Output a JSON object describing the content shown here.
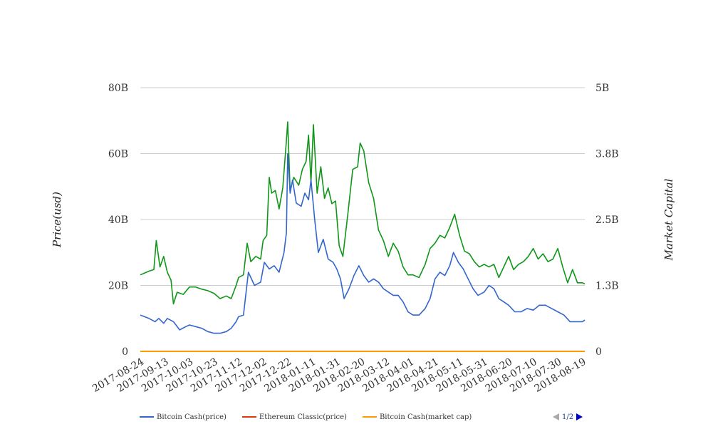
{
  "chart_data": {
    "type": "line",
    "ylabel_left": "Price(usd)",
    "ylabel_right": "Market Capital",
    "y_left_ticks": [
      "0",
      "20B",
      "40B",
      "60B",
      "80B"
    ],
    "y_left_range": [
      0,
      80
    ],
    "y_right_ticks": [
      "0",
      "1.3B",
      "2.5B",
      "3.8B",
      "5B"
    ],
    "y_right_range": [
      0,
      5
    ],
    "x_ticks": [
      "2017-08-24",
      "2017-09-13",
      "2017-10-03",
      "2017-10-23",
      "2017-11-12",
      "2017-12-02",
      "2017-12-22",
      "2018-01-11",
      "2018-01-31",
      "2018-02-20",
      "2018-03-12",
      "2018-04-01",
      "2018-04-21",
      "2018-05-11",
      "2018-05-31",
      "2018-06-20",
      "2018-07-10",
      "2018-07-30",
      "2018-08-19"
    ],
    "x_range": [
      "2017-08-24",
      "2018-08-21"
    ],
    "series": [
      {
        "name": "Bitcoin Cash(price)",
        "color": "#3366cc",
        "axis": "left",
        "points": [
          [
            "2017-08-24",
            11
          ],
          [
            "2017-08-31",
            10
          ],
          [
            "2017-09-05",
            9
          ],
          [
            "2017-09-08",
            10
          ],
          [
            "2017-09-12",
            8.5
          ],
          [
            "2017-09-15",
            10
          ],
          [
            "2017-09-20",
            9
          ],
          [
            "2017-09-25",
            6.5
          ],
          [
            "2017-09-30",
            7.5
          ],
          [
            "2017-10-03",
            8
          ],
          [
            "2017-10-08",
            7.5
          ],
          [
            "2017-10-13",
            7
          ],
          [
            "2017-10-18",
            6
          ],
          [
            "2017-10-23",
            5.5
          ],
          [
            "2017-10-28",
            5.5
          ],
          [
            "2017-11-02",
            6
          ],
          [
            "2017-11-06",
            7
          ],
          [
            "2017-11-10",
            9
          ],
          [
            "2017-11-12",
            10.5
          ],
          [
            "2017-11-16",
            11
          ],
          [
            "2017-11-20",
            24
          ],
          [
            "2017-11-25",
            20
          ],
          [
            "2017-11-30",
            21
          ],
          [
            "2017-12-03",
            27
          ],
          [
            "2017-12-07",
            25
          ],
          [
            "2017-12-11",
            26
          ],
          [
            "2017-12-15",
            24
          ],
          [
            "2017-12-19",
            30
          ],
          [
            "2017-12-21",
            36
          ],
          [
            "2017-12-22",
            60
          ],
          [
            "2017-12-24",
            48
          ],
          [
            "2017-12-26",
            52
          ],
          [
            "2017-12-29",
            45
          ],
          [
            "2018-01-02",
            44
          ],
          [
            "2018-01-05",
            48
          ],
          [
            "2018-01-08",
            46
          ],
          [
            "2018-01-10",
            52
          ],
          [
            "2018-01-13",
            40
          ],
          [
            "2018-01-16",
            30
          ],
          [
            "2018-01-20",
            34
          ],
          [
            "2018-01-24",
            28
          ],
          [
            "2018-01-28",
            27
          ],
          [
            "2018-01-31",
            25
          ],
          [
            "2018-02-03",
            22
          ],
          [
            "2018-02-06",
            16
          ],
          [
            "2018-02-10",
            19
          ],
          [
            "2018-02-14",
            23
          ],
          [
            "2018-02-18",
            26
          ],
          [
            "2018-02-22",
            23
          ],
          [
            "2018-02-26",
            21
          ],
          [
            "2018-03-02",
            22
          ],
          [
            "2018-03-06",
            21
          ],
          [
            "2018-03-10",
            19
          ],
          [
            "2018-03-14",
            18
          ],
          [
            "2018-03-18",
            17
          ],
          [
            "2018-03-22",
            17
          ],
          [
            "2018-03-26",
            15
          ],
          [
            "2018-03-30",
            12
          ],
          [
            "2018-04-03",
            11
          ],
          [
            "2018-04-08",
            11
          ],
          [
            "2018-04-13",
            13
          ],
          [
            "2018-04-17",
            16
          ],
          [
            "2018-04-21",
            22
          ],
          [
            "2018-04-25",
            24
          ],
          [
            "2018-04-29",
            23
          ],
          [
            "2018-05-03",
            26
          ],
          [
            "2018-05-06",
            30
          ],
          [
            "2018-05-10",
            27
          ],
          [
            "2018-05-14",
            25
          ],
          [
            "2018-05-18",
            22
          ],
          [
            "2018-05-22",
            19
          ],
          [
            "2018-05-26",
            17
          ],
          [
            "2018-05-31",
            18
          ],
          [
            "2018-06-04",
            20
          ],
          [
            "2018-06-08",
            19
          ],
          [
            "2018-06-12",
            16
          ],
          [
            "2018-06-16",
            15
          ],
          [
            "2018-06-20",
            14
          ],
          [
            "2018-06-25",
            12
          ],
          [
            "2018-06-30",
            12
          ],
          [
            "2018-07-05",
            13
          ],
          [
            "2018-07-10",
            12.5
          ],
          [
            "2018-07-15",
            14
          ],
          [
            "2018-07-20",
            14
          ],
          [
            "2018-07-25",
            13
          ],
          [
            "2018-07-30",
            12
          ],
          [
            "2018-08-04",
            11
          ],
          [
            "2018-08-09",
            9
          ],
          [
            "2018-08-14",
            9
          ],
          [
            "2018-08-19",
            9
          ],
          [
            "2018-08-21",
            9.5
          ]
        ]
      },
      {
        "name": "Ethereum Classic(price)",
        "color": "#dc3912",
        "axis": "left",
        "points": [
          [
            "2017-08-24",
            0
          ],
          [
            "2018-08-21",
            0
          ]
        ]
      },
      {
        "name": "Bitcoin Cash(market cap)",
        "color": "#ff9900",
        "axis": "left",
        "points": [
          [
            "2017-08-24",
            0
          ],
          [
            "2018-08-21",
            0
          ]
        ]
      },
      {
        "name": "",
        "color": "#109618",
        "axis": "right",
        "points": [
          [
            "2017-08-24",
            1.45
          ],
          [
            "2017-08-31",
            1.52
          ],
          [
            "2017-09-04",
            1.55
          ],
          [
            "2017-09-06",
            2.1
          ],
          [
            "2017-09-09",
            1.6
          ],
          [
            "2017-09-12",
            1.8
          ],
          [
            "2017-09-15",
            1.5
          ],
          [
            "2017-09-18",
            1.35
          ],
          [
            "2017-09-20",
            0.9
          ],
          [
            "2017-09-23",
            1.12
          ],
          [
            "2017-09-28",
            1.08
          ],
          [
            "2017-10-03",
            1.22
          ],
          [
            "2017-10-08",
            1.22
          ],
          [
            "2017-10-13",
            1.18
          ],
          [
            "2017-10-18",
            1.15
          ],
          [
            "2017-10-23",
            1.1
          ],
          [
            "2017-10-28",
            1.0
          ],
          [
            "2017-11-02",
            1.05
          ],
          [
            "2017-11-06",
            1.0
          ],
          [
            "2017-11-10",
            1.25
          ],
          [
            "2017-11-12",
            1.4
          ],
          [
            "2017-11-16",
            1.45
          ],
          [
            "2017-11-19",
            2.05
          ],
          [
            "2017-11-22",
            1.7
          ],
          [
            "2017-11-26",
            1.8
          ],
          [
            "2017-11-30",
            1.75
          ],
          [
            "2017-12-02",
            2.1
          ],
          [
            "2017-12-05",
            2.2
          ],
          [
            "2017-12-07",
            3.3
          ],
          [
            "2017-12-09",
            3.0
          ],
          [
            "2017-12-12",
            3.05
          ],
          [
            "2017-12-15",
            2.7
          ],
          [
            "2017-12-18",
            3.1
          ],
          [
            "2017-12-21",
            4.0
          ],
          [
            "2017-12-22",
            4.35
          ],
          [
            "2017-12-24",
            3.05
          ],
          [
            "2017-12-27",
            3.3
          ],
          [
            "2017-12-31",
            3.15
          ],
          [
            "2018-01-03",
            3.45
          ],
          [
            "2018-01-06",
            3.6
          ],
          [
            "2018-01-08",
            4.1
          ],
          [
            "2018-01-10",
            3.2
          ],
          [
            "2018-01-12",
            4.3
          ],
          [
            "2018-01-15",
            3.0
          ],
          [
            "2018-01-18",
            3.5
          ],
          [
            "2018-01-21",
            2.9
          ],
          [
            "2018-01-24",
            3.1
          ],
          [
            "2018-01-27",
            2.8
          ],
          [
            "2018-01-30",
            2.85
          ],
          [
            "2018-02-02",
            2.0
          ],
          [
            "2018-02-05",
            1.8
          ],
          [
            "2018-02-09",
            2.6
          ],
          [
            "2018-02-13",
            3.45
          ],
          [
            "2018-02-17",
            3.5
          ],
          [
            "2018-02-19",
            3.95
          ],
          [
            "2018-02-22",
            3.8
          ],
          [
            "2018-02-26",
            3.2
          ],
          [
            "2018-03-02",
            2.9
          ],
          [
            "2018-03-06",
            2.3
          ],
          [
            "2018-03-10",
            2.1
          ],
          [
            "2018-03-14",
            1.8
          ],
          [
            "2018-03-18",
            2.05
          ],
          [
            "2018-03-22",
            1.9
          ],
          [
            "2018-03-26",
            1.6
          ],
          [
            "2018-03-30",
            1.45
          ],
          [
            "2018-04-03",
            1.45
          ],
          [
            "2018-04-08",
            1.4
          ],
          [
            "2018-04-13",
            1.65
          ],
          [
            "2018-04-17",
            1.95
          ],
          [
            "2018-04-21",
            2.05
          ],
          [
            "2018-04-25",
            2.2
          ],
          [
            "2018-04-29",
            2.15
          ],
          [
            "2018-05-03",
            2.35
          ],
          [
            "2018-05-07",
            2.6
          ],
          [
            "2018-05-11",
            2.2
          ],
          [
            "2018-05-15",
            1.9
          ],
          [
            "2018-05-19",
            1.85
          ],
          [
            "2018-05-23",
            1.7
          ],
          [
            "2018-05-27",
            1.6
          ],
          [
            "2018-05-31",
            1.65
          ],
          [
            "2018-06-04",
            1.6
          ],
          [
            "2018-06-08",
            1.65
          ],
          [
            "2018-06-12",
            1.4
          ],
          [
            "2018-06-16",
            1.6
          ],
          [
            "2018-06-20",
            1.8
          ],
          [
            "2018-06-24",
            1.55
          ],
          [
            "2018-06-28",
            1.65
          ],
          [
            "2018-07-02",
            1.7
          ],
          [
            "2018-07-06",
            1.8
          ],
          [
            "2018-07-10",
            1.95
          ],
          [
            "2018-07-14",
            1.75
          ],
          [
            "2018-07-18",
            1.85
          ],
          [
            "2018-07-22",
            1.7
          ],
          [
            "2018-07-26",
            1.75
          ],
          [
            "2018-07-30",
            1.95
          ],
          [
            "2018-08-03",
            1.6
          ],
          [
            "2018-08-07",
            1.3
          ],
          [
            "2018-08-11",
            1.55
          ],
          [
            "2018-08-15",
            1.3
          ],
          [
            "2018-08-19",
            1.3
          ],
          [
            "2018-08-21",
            1.28
          ]
        ]
      }
    ],
    "legend_position": "bottom-left",
    "grid": true
  },
  "legend": {
    "items": [
      {
        "label": "Bitcoin Cash(price)",
        "color": "#3366cc"
      },
      {
        "label": "Ethereum Classic(price)",
        "color": "#dc3912"
      },
      {
        "label": "Bitcoin Cash(market cap)",
        "color": "#ff9900"
      }
    ],
    "page": "1/2"
  }
}
